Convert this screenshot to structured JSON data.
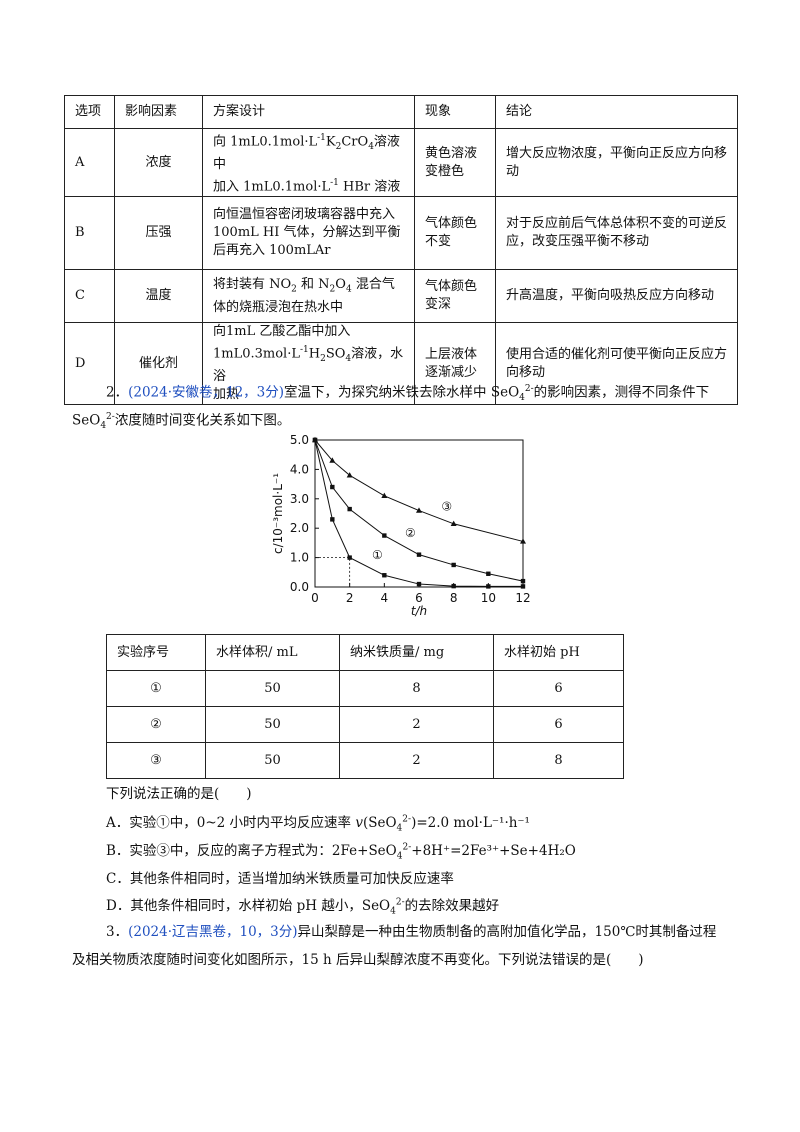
{
  "table1": {
    "headers": [
      "选项",
      "影响因素",
      "方案设计",
      "现象",
      "结论"
    ],
    "rows": [
      {
        "opt": "A",
        "factor": "浓度",
        "design_l1_pre": "向 1mL0.1mol·L",
        "design_l1_sup": "-1",
        "design_l1_mid": "K",
        "design_l1_sub1": "2",
        "design_l1_mid2": "CrO",
        "design_l1_sub2": "4",
        "design_l1_post": "溶液中",
        "design_l2_pre": "加入 1mL0.1mol·L",
        "design_l2_sup": "-1",
        "design_l2_post": " HBr 溶液",
        "phen": "黄色溶液\n变橙色",
        "concl": "增大反应物浓度，平衡向正反应方向移动"
      },
      {
        "opt": "B",
        "factor": "压强",
        "design": "向恒温恒容密闭玻璃容器中充入100mL HI 气体，分解达到平衡后再充入 100mLAr",
        "phen": "气体颜色\n不变",
        "concl": "对于反应前后气体总体积不变的可逆反应，改变压强平衡不移动"
      },
      {
        "opt": "C",
        "factor": "温度",
        "design_pre": "将封装有 NO",
        "design_sub1": "2",
        "design_mid": " 和 N",
        "design_sub2": "2",
        "design_mid2": "O",
        "design_sub3": "4",
        "design_post": " 混合气体的烧瓶浸泡在热水中",
        "phen": "气体颜色\n变深",
        "concl": "升高温度，平衡向吸热反应方向移动"
      },
      {
        "opt": "D",
        "factor": "催化剂",
        "design_l1": "向1mL 乙酸乙酯中加入",
        "design_l2_pre": "1mL0.3mol·L",
        "design_l2_sup": "-1",
        "design_l2_mid": "H",
        "design_l2_sub1": "2",
        "design_l2_mid2": "SO",
        "design_l2_sub2": "4",
        "design_l2_post": "溶液，水浴",
        "design_l3": "加热",
        "phen": "上层液体\n逐渐减少",
        "concl": "使用合适的催化剂可使平衡向正反应方向移动"
      }
    ]
  },
  "q2": {
    "num": "2．",
    "source": "(2024·安徽卷，12，3分)",
    "stem1_pre": "室温下，为探究纳米铁去除水样中 SeO",
    "stem1_sub": "4",
    "stem1_sup": "2-",
    "stem1_post": "的影响因素，测得不同条件下",
    "stem2_pre": "SeO",
    "stem2_sub": "4",
    "stem2_sup": "2-",
    "stem2_post": "浓度随时间变化关系如下图。"
  },
  "chart_data": {
    "type": "line",
    "xlabel": "t/h",
    "ylabel": "c/10⁻³mol·L⁻¹",
    "xlim": [
      0,
      12
    ],
    "ylim": [
      0,
      5
    ],
    "xticks": [
      "0",
      "2",
      "4",
      "6",
      "8",
      "10",
      "12"
    ],
    "yticks": [
      "0.0",
      "1.0",
      "2.0",
      "3.0",
      "4.0",
      "5.0"
    ],
    "series": [
      {
        "name": "①",
        "marker": "square",
        "x": [
          0,
          1,
          2,
          4,
          6,
          8,
          10,
          12
        ],
        "y": [
          5.0,
          2.3,
          1.0,
          0.4,
          0.1,
          0.03,
          0.02,
          0.02
        ]
      },
      {
        "name": "②",
        "marker": "square",
        "x": [
          0,
          1,
          2,
          4,
          6,
          8,
          10,
          12
        ],
        "y": [
          5.0,
          3.4,
          2.65,
          1.75,
          1.1,
          0.75,
          0.45,
          0.2
        ]
      },
      {
        "name": "③",
        "marker": "triangle",
        "x": [
          0,
          1,
          2,
          4,
          6,
          8,
          12
        ],
        "y": [
          5.0,
          4.3,
          3.8,
          3.1,
          2.6,
          2.15,
          1.55
        ]
      }
    ],
    "guide_point": {
      "x": 2,
      "y": 1.0
    }
  },
  "table2": {
    "headers": [
      "实验序号",
      "水样体积/ mL",
      "纳米铁质量/ mg",
      "水样初始 pH"
    ],
    "rows": [
      [
        "①",
        "50",
        "8",
        "6"
      ],
      [
        "②",
        "50",
        "2",
        "6"
      ],
      [
        "③",
        "50",
        "2",
        "8"
      ]
    ]
  },
  "q2_question": "下列说法正确的是(　　)",
  "options": {
    "A": {
      "pre": "A．实验①中，0~2 小时内平均反应速率 ",
      "v": "v",
      "mid": "(SeO",
      "sub": "4",
      "sup": "2-",
      "post": ")=2.0 mol·L⁻¹·h⁻¹"
    },
    "B": {
      "pre": "B．实验③中，反应的离子方程式为：2Fe+SeO",
      "sub": "4",
      "sup": "2-",
      "post": "+8H⁺=2Fe³⁺+Se+4H₂O"
    },
    "C": "C．其他条件相同时，适当增加纳米铁质量可加快反应速率",
    "D": {
      "pre": "D．其他条件相同时，水样初始 pH 越小，SeO",
      "sub": "4",
      "sup": "2-",
      "post": "的去除效果越好"
    }
  },
  "q3": {
    "num": "3．",
    "source": "(2024·辽吉黑卷，10，3分)",
    "line1": "异山梨醇是一种由生物质制备的高附加值化学品，150℃时其制备过程",
    "line2": "及相关物质浓度随时间变化如图所示，15 h 后异山梨醇浓度不再变化。下列说法错误的是(　　)"
  }
}
